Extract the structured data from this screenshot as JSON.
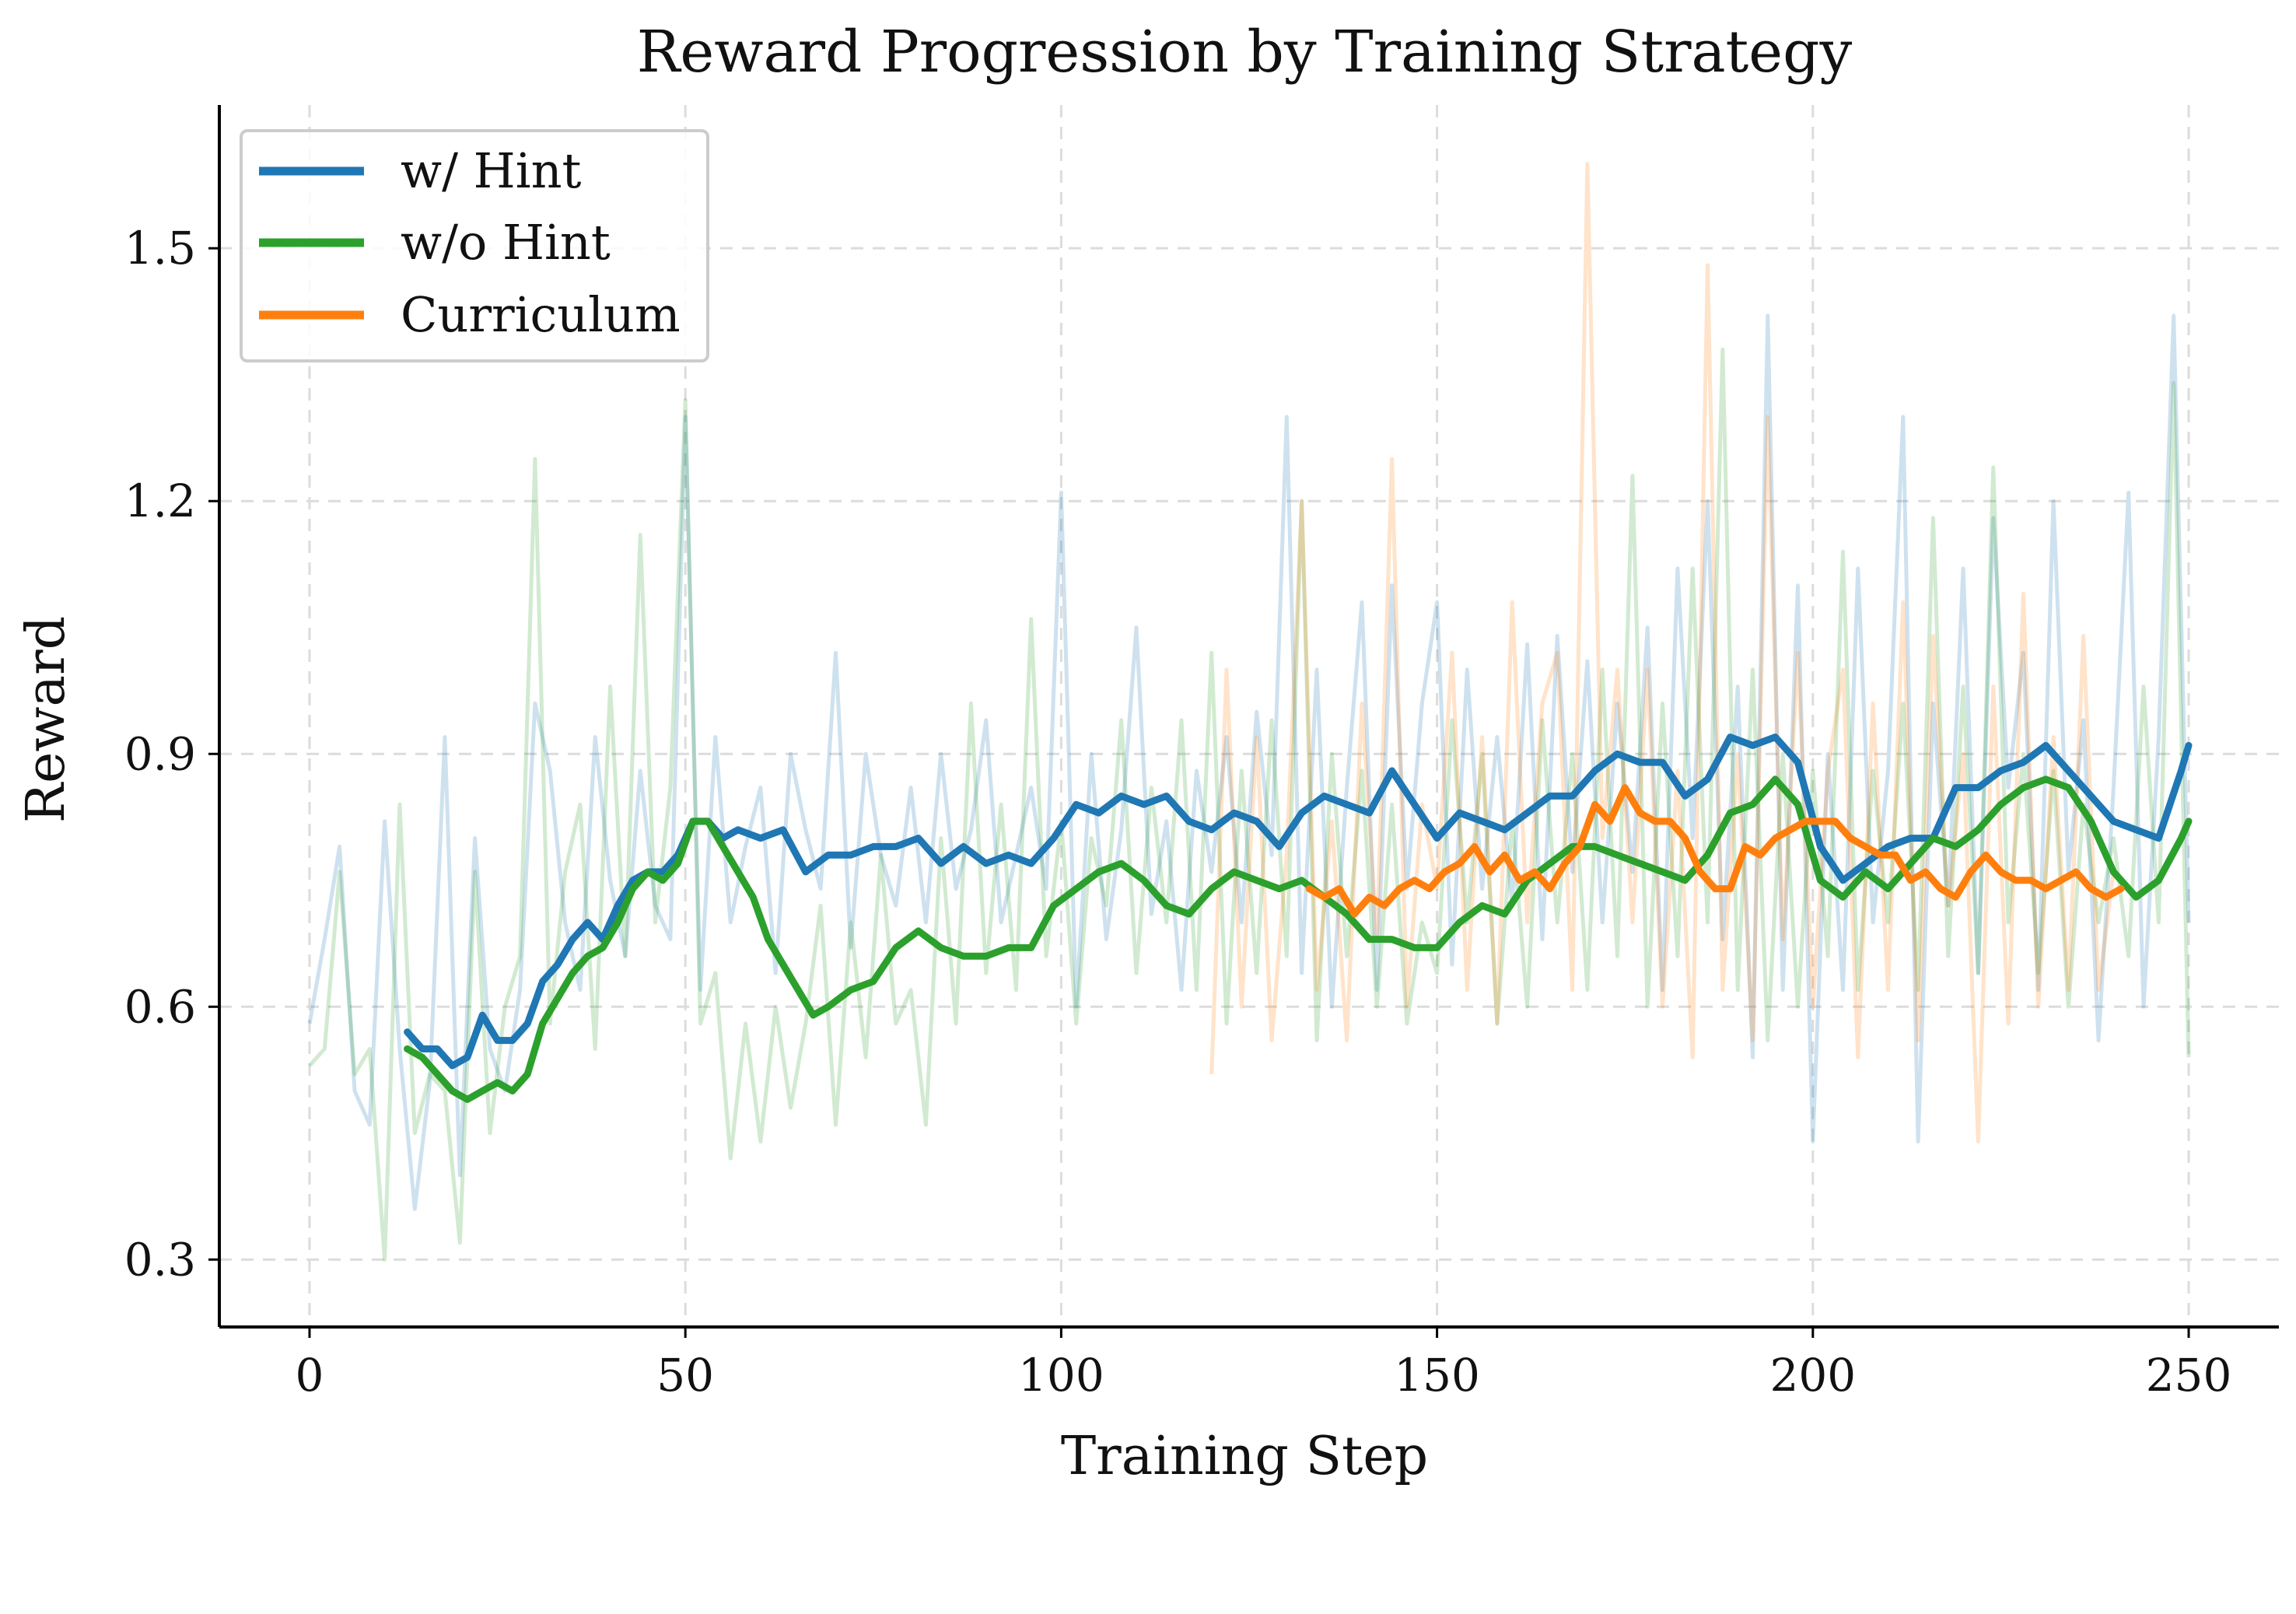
{
  "chart_data": {
    "type": "line",
    "title": "Reward Progression by Training Strategy",
    "xlabel": "Training Step",
    "ylabel": "Reward",
    "xlim": [
      -12,
      262
    ],
    "ylim": [
      0.22,
      1.67
    ],
    "x_ticks": [
      0,
      50,
      100,
      150,
      200,
      250
    ],
    "y_ticks": [
      0.3,
      0.6,
      0.9,
      1.2,
      1.5
    ],
    "x_tick_labels": [
      "0",
      "50",
      "100",
      "150",
      "200",
      "250"
    ],
    "y_tick_labels": [
      "0.3",
      "0.6",
      "0.9",
      "1.2",
      "1.5"
    ],
    "grid": true,
    "legend_position": "upper-left",
    "series": [
      {
        "name": "w/ Hint",
        "color": "#1f77b4",
        "smoothed_x": [
          13,
          15,
          17,
          19,
          21,
          23,
          25,
          27,
          29,
          31,
          33,
          35,
          37,
          39,
          41,
          43,
          45,
          47,
          49,
          51,
          53,
          55,
          57,
          60,
          63,
          66,
          69,
          72,
          75,
          78,
          81,
          84,
          87,
          90,
          93,
          96,
          99,
          102,
          105,
          108,
          111,
          114,
          117,
          120,
          123,
          126,
          129,
          132,
          135,
          138,
          141,
          144,
          147,
          150,
          153,
          156,
          159,
          162,
          165,
          168,
          171,
          174,
          177,
          180,
          183,
          186,
          189,
          192,
          195,
          198,
          201,
          204,
          207,
          210,
          213,
          216,
          219,
          222,
          225,
          228,
          231,
          234,
          237,
          240,
          243,
          246,
          249,
          250
        ],
        "smoothed_y": [
          0.57,
          0.55,
          0.55,
          0.53,
          0.54,
          0.59,
          0.56,
          0.56,
          0.58,
          0.63,
          0.65,
          0.68,
          0.7,
          0.68,
          0.72,
          0.75,
          0.76,
          0.76,
          0.78,
          0.82,
          0.82,
          0.8,
          0.81,
          0.8,
          0.81,
          0.76,
          0.78,
          0.78,
          0.79,
          0.79,
          0.8,
          0.77,
          0.79,
          0.77,
          0.78,
          0.77,
          0.8,
          0.84,
          0.83,
          0.85,
          0.84,
          0.85,
          0.82,
          0.81,
          0.83,
          0.82,
          0.79,
          0.83,
          0.85,
          0.84,
          0.83,
          0.88,
          0.84,
          0.8,
          0.83,
          0.82,
          0.81,
          0.83,
          0.85,
          0.85,
          0.88,
          0.9,
          0.89,
          0.89,
          0.85,
          0.87,
          0.92,
          0.91,
          0.92,
          0.89,
          0.79,
          0.75,
          0.77,
          0.79,
          0.8,
          0.8,
          0.86,
          0.86,
          0.88,
          0.89,
          0.91,
          0.88,
          0.85,
          0.82,
          0.81,
          0.8,
          0.88,
          0.91
        ],
        "raw_x": [
          0,
          2,
          4,
          6,
          8,
          10,
          12,
          14,
          16,
          18,
          20,
          22,
          24,
          26,
          28,
          30,
          32,
          34,
          36,
          38,
          40,
          42,
          44,
          46,
          48,
          50,
          52,
          54,
          56,
          58,
          60,
          62,
          64,
          66,
          68,
          70,
          72,
          74,
          76,
          78,
          80,
          82,
          84,
          86,
          88,
          90,
          92,
          94,
          96,
          98,
          100,
          102,
          104,
          106,
          108,
          110,
          112,
          114,
          116,
          118,
          120,
          122,
          124,
          126,
          128,
          130,
          132,
          134,
          136,
          138,
          140,
          142,
          144,
          146,
          148,
          150,
          152,
          154,
          156,
          158,
          160,
          162,
          164,
          166,
          168,
          170,
          172,
          174,
          176,
          178,
          180,
          182,
          184,
          186,
          188,
          190,
          192,
          194,
          196,
          198,
          200,
          202,
          204,
          206,
          208,
          210,
          212,
          214,
          216,
          218,
          220,
          222,
          224,
          226,
          228,
          230,
          232,
          234,
          236,
          238,
          240,
          242,
          244,
          246,
          248,
          250
        ],
        "raw_y": [
          0.58,
          0.68,
          0.79,
          0.5,
          0.46,
          0.82,
          0.55,
          0.36,
          0.51,
          0.92,
          0.4,
          0.8,
          0.55,
          0.5,
          0.62,
          0.96,
          0.88,
          0.7,
          0.62,
          0.92,
          0.75,
          0.66,
          0.88,
          0.72,
          0.68,
          1.3,
          0.62,
          0.92,
          0.7,
          0.79,
          0.86,
          0.64,
          0.9,
          0.81,
          0.74,
          1.02,
          0.67,
          0.9,
          0.78,
          0.72,
          0.86,
          0.7,
          0.9,
          0.74,
          0.81,
          0.94,
          0.7,
          0.78,
          0.86,
          0.74,
          1.21,
          0.6,
          0.9,
          0.68,
          0.81,
          1.05,
          0.71,
          0.82,
          0.62,
          0.88,
          0.76,
          0.92,
          0.7,
          0.95,
          0.78,
          1.3,
          0.64,
          1.0,
          0.6,
          0.86,
          1.08,
          0.62,
          1.1,
          0.74,
          0.96,
          1.08,
          0.65,
          1.0,
          0.74,
          0.92,
          0.72,
          1.03,
          0.68,
          1.04,
          0.76,
          1.01,
          0.7,
          0.96,
          0.76,
          1.05,
          0.62,
          1.12,
          0.8,
          1.2,
          0.68,
          0.98,
          0.54,
          1.42,
          0.62,
          1.1,
          0.44,
          0.9,
          0.62,
          1.12,
          0.7,
          0.88,
          1.3,
          0.44,
          0.96,
          0.72,
          1.12,
          0.64,
          1.18,
          0.86,
          1.02,
          0.62,
          1.2,
          0.76,
          0.94,
          0.56,
          0.86,
          1.21,
          0.6,
          0.92,
          1.42,
          0.7
        ]
      },
      {
        "name": "w/o Hint",
        "color": "#2ca02c",
        "smoothed_x": [
          13,
          15,
          17,
          19,
          21,
          23,
          25,
          27,
          29,
          31,
          33,
          35,
          37,
          39,
          41,
          43,
          45,
          47,
          49,
          51,
          53,
          55,
          57,
          59,
          61,
          63,
          65,
          67,
          69,
          72,
          75,
          78,
          81,
          84,
          87,
          90,
          93,
          96,
          99,
          102,
          105,
          108,
          111,
          114,
          117,
          120,
          123,
          126,
          129,
          132,
          135,
          138,
          141,
          144,
          147,
          150,
          153,
          156,
          159,
          162,
          165,
          168,
          171,
          174,
          177,
          180,
          183,
          186,
          189,
          192,
          195,
          198,
          201,
          204,
          207,
          210,
          213,
          216,
          219,
          222,
          225,
          228,
          231,
          234,
          237,
          240,
          243,
          246,
          249,
          250
        ],
        "smoothed_y": [
          0.55,
          0.54,
          0.52,
          0.5,
          0.49,
          0.5,
          0.51,
          0.5,
          0.52,
          0.58,
          0.61,
          0.64,
          0.66,
          0.67,
          0.7,
          0.74,
          0.76,
          0.75,
          0.77,
          0.82,
          0.82,
          0.79,
          0.76,
          0.73,
          0.68,
          0.65,
          0.62,
          0.59,
          0.6,
          0.62,
          0.63,
          0.67,
          0.69,
          0.67,
          0.66,
          0.66,
          0.67,
          0.67,
          0.72,
          0.74,
          0.76,
          0.77,
          0.75,
          0.72,
          0.71,
          0.74,
          0.76,
          0.75,
          0.74,
          0.75,
          0.73,
          0.71,
          0.68,
          0.68,
          0.67,
          0.67,
          0.7,
          0.72,
          0.71,
          0.75,
          0.77,
          0.79,
          0.79,
          0.78,
          0.77,
          0.76,
          0.75,
          0.78,
          0.83,
          0.84,
          0.87,
          0.84,
          0.75,
          0.73,
          0.76,
          0.74,
          0.77,
          0.8,
          0.79,
          0.81,
          0.84,
          0.86,
          0.87,
          0.86,
          0.82,
          0.76,
          0.73,
          0.75,
          0.8,
          0.82
        ],
        "raw_x": [
          0,
          2,
          4,
          6,
          8,
          10,
          12,
          14,
          16,
          18,
          20,
          22,
          24,
          26,
          28,
          30,
          32,
          34,
          36,
          38,
          40,
          42,
          44,
          46,
          48,
          50,
          52,
          54,
          56,
          58,
          60,
          62,
          64,
          66,
          68,
          70,
          72,
          74,
          76,
          78,
          80,
          82,
          84,
          86,
          88,
          90,
          92,
          94,
          96,
          98,
          100,
          102,
          104,
          106,
          108,
          110,
          112,
          114,
          116,
          118,
          120,
          122,
          124,
          126,
          128,
          130,
          132,
          134,
          136,
          138,
          140,
          142,
          144,
          146,
          148,
          150,
          152,
          154,
          156,
          158,
          160,
          162,
          164,
          166,
          168,
          170,
          172,
          174,
          176,
          178,
          180,
          182,
          184,
          186,
          188,
          190,
          192,
          194,
          196,
          198,
          200,
          202,
          204,
          206,
          208,
          210,
          212,
          214,
          216,
          218,
          220,
          222,
          224,
          226,
          228,
          230,
          232,
          234,
          236,
          238,
          240,
          242,
          244,
          246,
          248,
          250
        ],
        "raw_y": [
          0.53,
          0.55,
          0.76,
          0.52,
          0.55,
          0.3,
          0.84,
          0.45,
          0.52,
          0.5,
          0.32,
          0.76,
          0.45,
          0.6,
          0.66,
          1.25,
          0.58,
          0.76,
          0.84,
          0.55,
          0.98,
          0.66,
          1.16,
          0.7,
          0.86,
          1.32,
          0.58,
          0.64,
          0.42,
          0.58,
          0.44,
          0.6,
          0.48,
          0.58,
          0.72,
          0.46,
          0.7,
          0.54,
          0.78,
          0.58,
          0.62,
          0.46,
          0.8,
          0.58,
          0.96,
          0.64,
          0.84,
          0.62,
          1.06,
          0.66,
          0.82,
          0.58,
          0.8,
          0.72,
          0.94,
          0.64,
          0.86,
          0.7,
          0.94,
          0.62,
          1.02,
          0.58,
          0.88,
          0.64,
          0.94,
          0.66,
          1.2,
          0.56,
          0.9,
          0.66,
          0.88,
          0.6,
          0.84,
          0.58,
          0.7,
          0.64,
          0.94,
          0.7,
          0.9,
          0.58,
          0.82,
          0.6,
          0.94,
          0.7,
          0.9,
          0.62,
          1.0,
          0.66,
          1.23,
          0.6,
          0.96,
          0.66,
          1.12,
          0.7,
          1.38,
          0.62,
          1.0,
          0.56,
          0.9,
          0.6,
          0.88,
          0.66,
          1.14,
          0.62,
          0.88,
          0.7,
          0.96,
          0.62,
          1.18,
          0.66,
          0.98,
          0.64,
          1.24,
          0.7,
          0.9,
          0.64,
          0.88,
          0.6,
          0.84,
          0.7,
          0.8,
          0.66,
          0.98,
          0.7,
          1.34,
          0.54
        ]
      },
      {
        "name": "Curriculum",
        "color": "#ff7f0e",
        "smoothed_x": [
          133,
          135,
          137,
          139,
          141,
          143,
          145,
          147,
          149,
          151,
          153,
          155,
          157,
          159,
          161,
          163,
          165,
          167,
          169,
          171,
          173,
          175,
          177,
          179,
          181,
          183,
          185,
          187,
          189,
          191,
          193,
          195,
          197,
          199,
          201,
          203,
          205,
          207,
          209,
          211,
          213,
          215,
          217,
          219,
          221,
          223,
          225,
          227,
          229,
          231,
          233,
          235,
          237,
          239,
          241
        ],
        "smoothed_y": [
          0.74,
          0.73,
          0.74,
          0.71,
          0.73,
          0.72,
          0.74,
          0.75,
          0.74,
          0.76,
          0.77,
          0.79,
          0.76,
          0.78,
          0.75,
          0.76,
          0.74,
          0.77,
          0.79,
          0.84,
          0.82,
          0.86,
          0.83,
          0.82,
          0.82,
          0.8,
          0.76,
          0.74,
          0.74,
          0.79,
          0.78,
          0.8,
          0.81,
          0.82,
          0.82,
          0.82,
          0.8,
          0.79,
          0.78,
          0.78,
          0.75,
          0.76,
          0.74,
          0.73,
          0.76,
          0.78,
          0.76,
          0.75,
          0.75,
          0.74,
          0.75,
          0.76,
          0.74,
          0.73,
          0.74
        ],
        "raw_x": [
          120,
          122,
          124,
          126,
          128,
          130,
          132,
          134,
          136,
          138,
          140,
          142,
          144,
          146,
          148,
          150,
          152,
          154,
          156,
          158,
          160,
          162,
          164,
          166,
          168,
          170,
          172,
          174,
          176,
          178,
          180,
          182,
          184,
          186,
          188,
          190,
          192,
          194,
          196,
          198,
          200,
          202,
          204,
          206,
          208,
          210,
          212,
          214,
          216,
          218,
          220,
          222,
          224,
          226,
          228,
          230,
          232,
          234,
          236,
          238,
          240
        ],
        "raw_y": [
          0.52,
          1.0,
          0.6,
          0.92,
          0.56,
          0.78,
          1.2,
          0.62,
          0.82,
          0.56,
          0.96,
          0.68,
          1.25,
          0.6,
          0.84,
          0.74,
          1.02,
          0.62,
          0.92,
          0.58,
          1.08,
          0.7,
          0.96,
          1.02,
          0.62,
          1.6,
          0.8,
          1.0,
          0.7,
          1.0,
          0.6,
          0.88,
          0.54,
          1.48,
          0.62,
          0.9,
          0.56,
          1.3,
          0.68,
          1.02,
          0.6,
          0.88,
          1.0,
          0.54,
          0.96,
          0.62,
          1.08,
          0.56,
          1.04,
          0.72,
          0.9,
          0.44,
          0.98,
          0.58,
          1.09,
          0.6,
          0.92,
          0.62,
          1.04,
          0.62,
          0.76
        ]
      }
    ]
  }
}
